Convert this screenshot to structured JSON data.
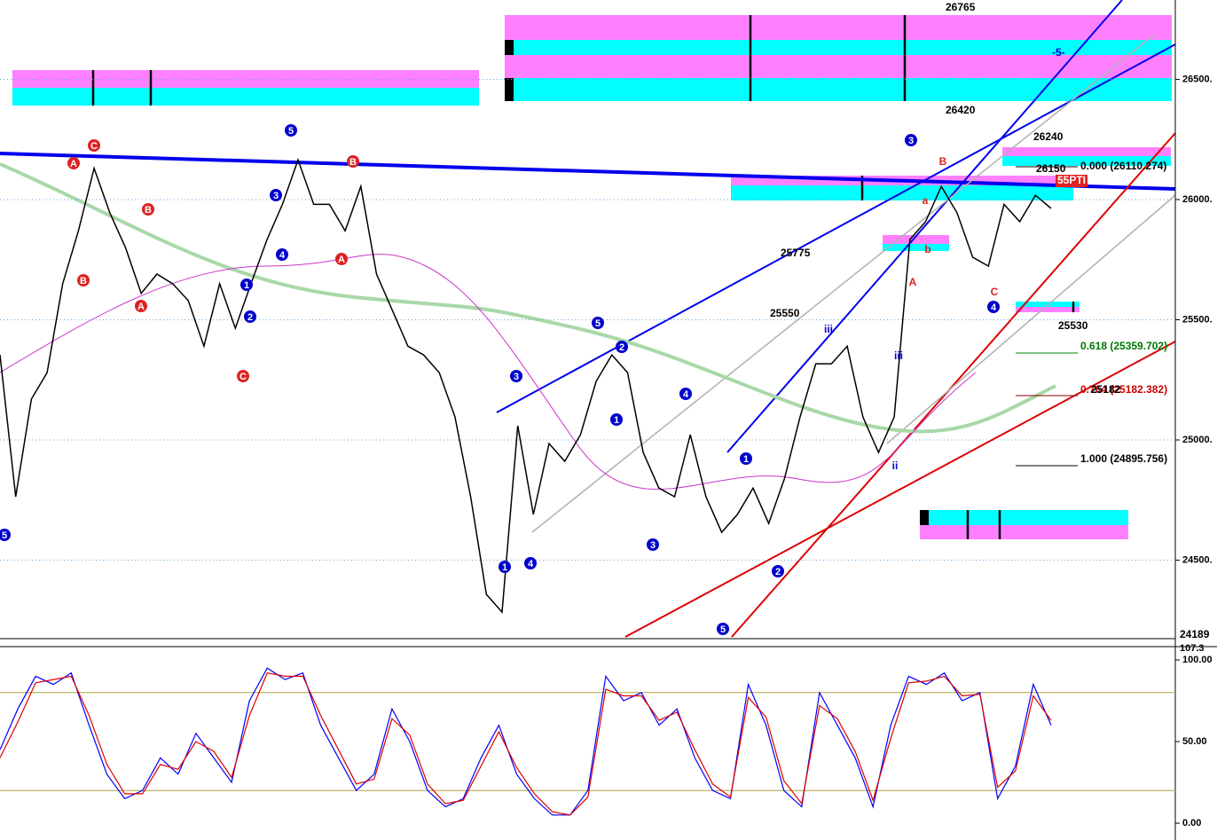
{
  "chart_data": [
    {
      "type": "line",
      "ylim": [
        24181,
        26830
      ],
      "yticks": [
        {
          "value": 26500,
          "label": "26500."
        },
        {
          "value": 26000,
          "label": "26000."
        },
        {
          "value": 25500,
          "label": "25500."
        },
        {
          "value": 25000,
          "label": "25000."
        },
        {
          "value": 24500,
          "label": "24500."
        }
      ],
      "grid": true,
      "categories": [
        null,
        null,
        null,
        null,
        null,
        null,
        null,
        null,
        null,
        null,
        null,
        null,
        null,
        null,
        null,
        null,
        null,
        null,
        null,
        null,
        null,
        null,
        null,
        null,
        null,
        null,
        null,
        null,
        null,
        null,
        null,
        null,
        null,
        null,
        null,
        null,
        null,
        null,
        null,
        null,
        null,
        null,
        null,
        null,
        null,
        null,
        null,
        null,
        null,
        null,
        null,
        null,
        null,
        null,
        null,
        null,
        null,
        null,
        null,
        null,
        null,
        null,
        null,
        null,
        null,
        null,
        null,
        null
      ],
      "series": [
        {
          "color": "#000000",
          "values": [
            25354,
            24764,
            25170,
            25280,
            25650,
            25870,
            26130,
            25945,
            25800,
            25610,
            25690,
            25650,
            25580,
            25390,
            25650,
            25465,
            25650,
            25830,
            25980,
            26165,
            25980,
            25980,
            25870,
            26055,
            25690,
            25540,
            25390,
            25354,
            25280,
            25096,
            24764,
            24358,
            24284,
            25059,
            24690,
            24985,
            24911,
            25022,
            25244,
            25354,
            25280,
            24948,
            24800,
            24764,
            25022,
            24764,
            24616,
            24690,
            24800,
            24653,
            24838,
            25096,
            25317,
            25317,
            25390,
            25096,
            24948,
            25096,
            25834,
            25908,
            26055,
            25945,
            25760,
            25723,
            25980,
            25908,
            26018,
            25963
          ]
        }
      ],
      "annotations": [
        "26765",
        "26420",
        "26240",
        "26150",
        "0.000 (26110.274)",
        "25775",
        "25550",
        "25530",
        "0.618 (25359.702)",
        "0.764 (25182.382)",
        "25182",
        "1.000 (24895.756)",
        "-5-",
        "55PTI",
        "24189"
      ],
      "wave_labels": [
        "5",
        "C",
        "A",
        "B",
        "A",
        "B",
        "5",
        "B",
        "A",
        "C",
        "3",
        "4",
        "1",
        "2",
        "3",
        "1",
        "4",
        "5",
        "2",
        "1",
        "4",
        "3",
        "1",
        "2",
        "5",
        "3",
        "4",
        "B",
        "A",
        "C",
        "iii",
        "ii",
        "iii",
        "a",
        "b"
      ]
    },
    {
      "type": "line",
      "ylim": [
        -10.3,
        107.6
      ],
      "yticks": [
        {
          "value": 100,
          "label": "100.00"
        },
        {
          "value": 50,
          "label": "50.00"
        },
        {
          "value": 0,
          "label": "0.00"
        }
      ],
      "categories": [
        null,
        null,
        null,
        null,
        null,
        null,
        null,
        null,
        null,
        null,
        null,
        null,
        null,
        null,
        null,
        null,
        null,
        null,
        null,
        null,
        null,
        null,
        null,
        null,
        null,
        null,
        null,
        null,
        null,
        null,
        null,
        null,
        null,
        null,
        null,
        null,
        null,
        null,
        null,
        null,
        null,
        null,
        null,
        null,
        null,
        null,
        null,
        null,
        null,
        null,
        null,
        null,
        null,
        null,
        null,
        null,
        null,
        null,
        null,
        null
      ],
      "series": [
        {
          "color": "#0000ff",
          "values": [
            45,
            70,
            90,
            85,
            92,
            60,
            30,
            15,
            20,
            40,
            30,
            55,
            40,
            25,
            75,
            95,
            88,
            92,
            60,
            40,
            20,
            30,
            70,
            50,
            20,
            10,
            15,
            40,
            60,
            30,
            15,
            5,
            5,
            20,
            90,
            75,
            80,
            60,
            70,
            40,
            20,
            15,
            85,
            60,
            20,
            10,
            80,
            60,
            40,
            10,
            60,
            90,
            85,
            92,
            75,
            80,
            15,
            35,
            85,
            60
          ]
        },
        {
          "color": "#dd0000",
          "values": [
            40,
            62,
            86,
            88,
            90,
            66,
            36,
            18,
            18,
            36,
            33,
            50,
            44,
            28,
            66,
            92,
            90,
            90,
            66,
            45,
            24,
            27,
            64,
            54,
            24,
            12,
            14,
            35,
            56,
            34,
            18,
            7,
            5,
            16,
            82,
            78,
            78,
            63,
            68,
            45,
            24,
            16,
            77,
            65,
            26,
            12,
            72,
            64,
            44,
            14,
            52,
            86,
            87,
            90,
            78,
            79,
            22,
            32,
            78,
            63
          ]
        }
      ],
      "annotations": [
        "107.3"
      ]
    }
  ]
}
